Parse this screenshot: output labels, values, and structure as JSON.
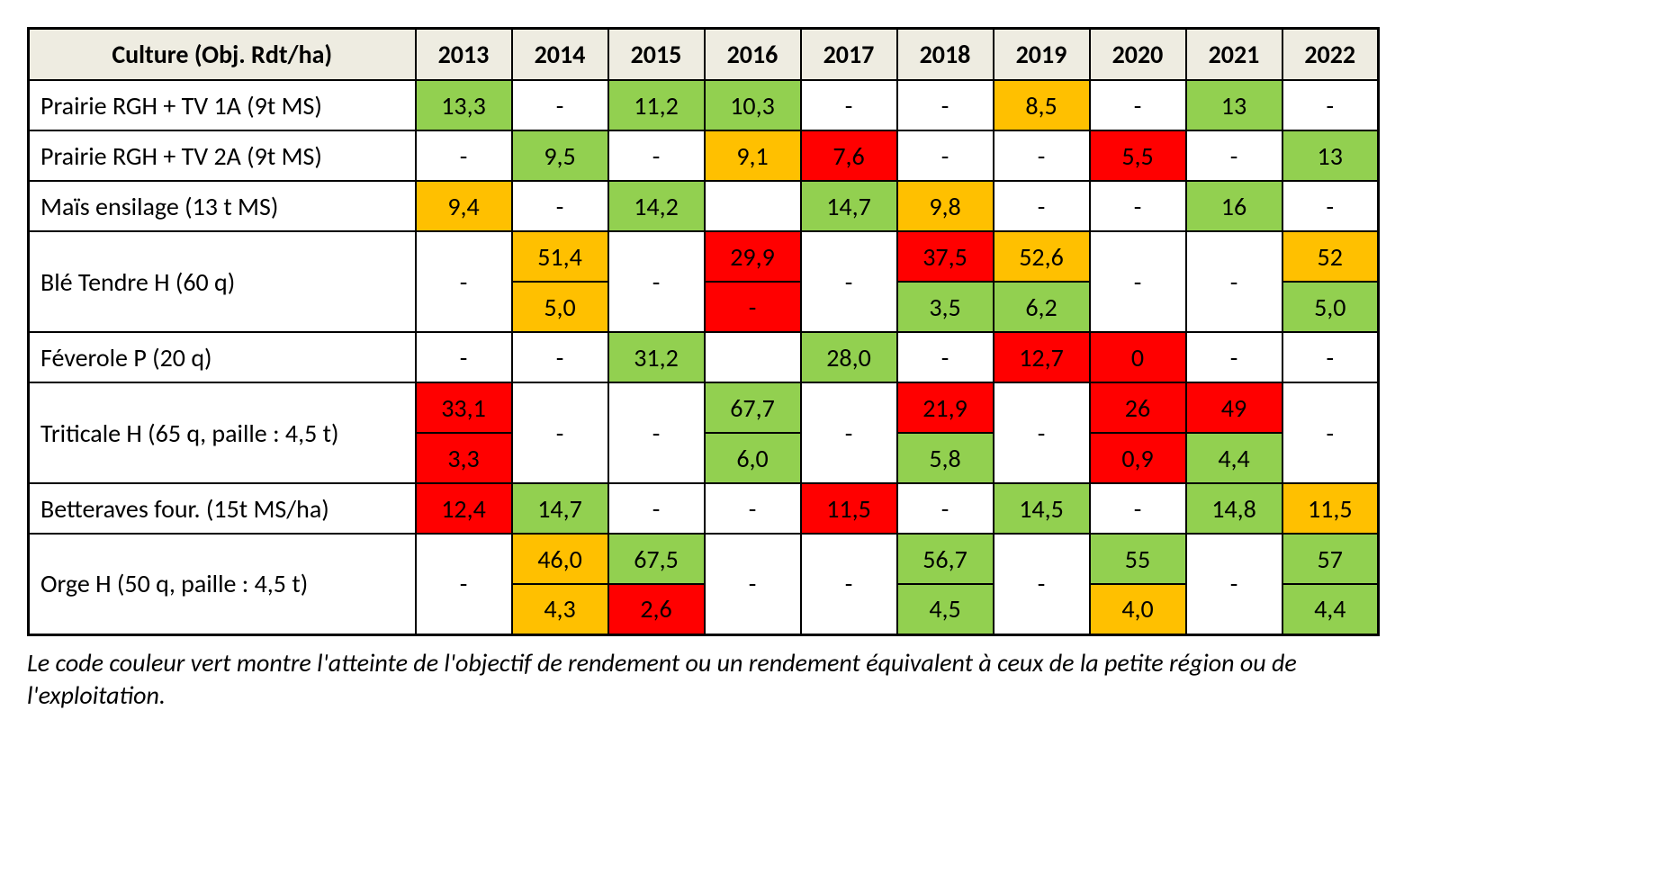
{
  "colors": {
    "header_bg": "#eeece1",
    "green": "#92d050",
    "orange": "#ffc000",
    "red": "#ff0000",
    "white": "#ffffff",
    "border": "#000000",
    "text": "#000000"
  },
  "table": {
    "header_label": "Culture (Obj. Rdt/ha)",
    "years": [
      "2013",
      "2014",
      "2015",
      "2016",
      "2017",
      "2018",
      "2019",
      "2020",
      "2021",
      "2022"
    ],
    "rows": [
      {
        "label": "Prairie RGH + TV 1A (9t MS)",
        "type": "single",
        "cells": [
          {
            "value": "13,3",
            "color": "green"
          },
          {
            "value": "-",
            "color": "white"
          },
          {
            "value": "11,2",
            "color": "green"
          },
          {
            "value": "10,3",
            "color": "green"
          },
          {
            "value": "-",
            "color": "white"
          },
          {
            "value": "-",
            "color": "white"
          },
          {
            "value": "8,5",
            "color": "orange"
          },
          {
            "value": "-",
            "color": "white"
          },
          {
            "value": "13",
            "color": "green"
          },
          {
            "value": "-",
            "color": "white"
          }
        ]
      },
      {
        "label": "Prairie RGH + TV 2A (9t MS)",
        "type": "single",
        "cells": [
          {
            "value": "-",
            "color": "white"
          },
          {
            "value": "9,5",
            "color": "green"
          },
          {
            "value": "-",
            "color": "white"
          },
          {
            "value": "9,1",
            "color": "orange"
          },
          {
            "value": "7,6",
            "color": "red"
          },
          {
            "value": "-",
            "color": "white"
          },
          {
            "value": "-",
            "color": "white"
          },
          {
            "value": "5,5",
            "color": "red"
          },
          {
            "value": "-",
            "color": "white"
          },
          {
            "value": "13",
            "color": "green"
          }
        ]
      },
      {
        "label": "Maïs ensilage (13 t MS)",
        "type": "single",
        "cells": [
          {
            "value": "9,4",
            "color": "orange"
          },
          {
            "value": "-",
            "color": "white"
          },
          {
            "value": "14,2",
            "color": "green"
          },
          {
            "value": "",
            "color": "white"
          },
          {
            "value": "14,7",
            "color": "green"
          },
          {
            "value": "9,8",
            "color": "orange"
          },
          {
            "value": "-",
            "color": "white"
          },
          {
            "value": "-",
            "color": "white"
          },
          {
            "value": "16",
            "color": "green"
          },
          {
            "value": "-",
            "color": "white"
          }
        ]
      },
      {
        "label": "Blé Tendre H (60 q)",
        "type": "double",
        "cells": [
          {
            "merged": true,
            "value": "-",
            "color": "white"
          },
          {
            "top": {
              "value": "51,4",
              "color": "orange"
            },
            "bottom": {
              "value": "5,0",
              "color": "orange"
            }
          },
          {
            "merged": true,
            "value": "-",
            "color": "white"
          },
          {
            "top": {
              "value": "29,9",
              "color": "red"
            },
            "bottom": {
              "value": "-",
              "color": "red"
            }
          },
          {
            "merged": true,
            "value": "-",
            "color": "white"
          },
          {
            "top": {
              "value": "37,5",
              "color": "red"
            },
            "bottom": {
              "value": "3,5",
              "color": "green"
            }
          },
          {
            "top": {
              "value": "52,6",
              "color": "orange"
            },
            "bottom": {
              "value": "6,2",
              "color": "green"
            }
          },
          {
            "merged": true,
            "value": "-",
            "color": "white"
          },
          {
            "merged": true,
            "value": "-",
            "color": "white"
          },
          {
            "top": {
              "value": "52",
              "color": "orange"
            },
            "bottom": {
              "value": "5,0",
              "color": "green"
            }
          }
        ]
      },
      {
        "label": "Féverole P (20 q)",
        "type": "single",
        "cells": [
          {
            "value": "-",
            "color": "white"
          },
          {
            "value": "-",
            "color": "white"
          },
          {
            "value": "31,2",
            "color": "green"
          },
          {
            "value": "",
            "color": "white"
          },
          {
            "value": "28,0",
            "color": "green"
          },
          {
            "value": "-",
            "color": "white"
          },
          {
            "value": "12,7",
            "color": "red"
          },
          {
            "value": "0",
            "color": "red"
          },
          {
            "value": "-",
            "color": "white"
          },
          {
            "value": "-",
            "color": "white"
          }
        ]
      },
      {
        "label": "Triticale H (65 q, paille : 4,5 t)",
        "type": "double",
        "cells": [
          {
            "top": {
              "value": "33,1",
              "color": "red"
            },
            "bottom": {
              "value": "3,3",
              "color": "red"
            }
          },
          {
            "merged": true,
            "value": "-",
            "color": "white"
          },
          {
            "merged": true,
            "value": "-",
            "color": "white"
          },
          {
            "top": {
              "value": "67,7",
              "color": "green"
            },
            "bottom": {
              "value": "6,0",
              "color": "green"
            }
          },
          {
            "merged": true,
            "value": "-",
            "color": "white"
          },
          {
            "top": {
              "value": "21,9",
              "color": "red"
            },
            "bottom": {
              "value": "5,8",
              "color": "green"
            }
          },
          {
            "merged": true,
            "value": "-",
            "color": "white"
          },
          {
            "top": {
              "value": "26",
              "color": "red"
            },
            "bottom": {
              "value": "0,9",
              "color": "red"
            }
          },
          {
            "top": {
              "value": "49",
              "color": "red"
            },
            "bottom": {
              "value": "4,4",
              "color": "green"
            }
          },
          {
            "merged": true,
            "value": "-",
            "color": "white"
          }
        ]
      },
      {
        "label": "Betteraves four. (15t MS/ha)",
        "type": "single",
        "cells": [
          {
            "value": "12,4",
            "color": "red"
          },
          {
            "value": "14,7",
            "color": "green"
          },
          {
            "value": "-",
            "color": "white"
          },
          {
            "value": "-",
            "color": "white"
          },
          {
            "value": "11,5",
            "color": "red"
          },
          {
            "value": "-",
            "color": "white"
          },
          {
            "value": "14,5",
            "color": "green"
          },
          {
            "value": "-",
            "color": "white"
          },
          {
            "value": "14,8",
            "color": "green"
          },
          {
            "value": "11,5",
            "color": "orange"
          }
        ]
      },
      {
        "label": "Orge H (50 q, paille : 4,5 t)",
        "type": "double",
        "cells": [
          {
            "merged": true,
            "value": "-",
            "color": "white"
          },
          {
            "top": {
              "value": "46,0",
              "color": "orange"
            },
            "bottom": {
              "value": "4,3",
              "color": "orange"
            }
          },
          {
            "top": {
              "value": "67,5",
              "color": "green"
            },
            "bottom": {
              "value": "2,6",
              "color": "red"
            }
          },
          {
            "merged": true,
            "value": "-",
            "color": "white"
          },
          {
            "merged": true,
            "value": "-",
            "color": "white"
          },
          {
            "top": {
              "value": "56,7",
              "color": "green"
            },
            "bottom": {
              "value": "4,5",
              "color": "green"
            }
          },
          {
            "merged": true,
            "value": "-",
            "color": "white"
          },
          {
            "top": {
              "value": "55",
              "color": "green"
            },
            "bottom": {
              "value": "4,0",
              "color": "orange"
            }
          },
          {
            "merged": true,
            "value": "-",
            "color": "white"
          },
          {
            "top": {
              "value": "57",
              "color": "green"
            },
            "bottom": {
              "value": "4,4",
              "color": "green"
            }
          }
        ]
      }
    ]
  },
  "footnote": "Le code couleur vert montre l'atteinte de l'objectif de rendement ou un rendement équivalent à ceux de la petite région ou de l'exploitation."
}
